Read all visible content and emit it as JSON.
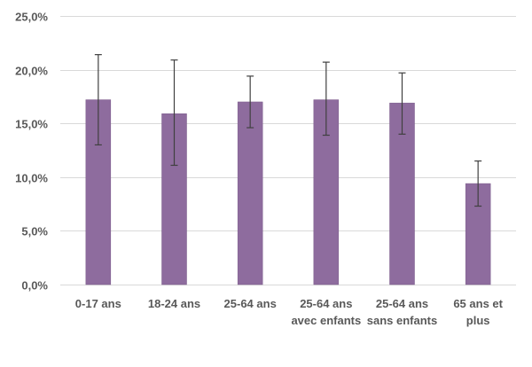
{
  "chart_data": {
    "type": "bar",
    "title": "",
    "xlabel": "",
    "ylabel": "",
    "categories": [
      [
        "0-17 ans"
      ],
      [
        "18-24 ans"
      ],
      [
        "25-64 ans"
      ],
      [
        "25-64 ans",
        "avec enfants"
      ],
      [
        "25-64 ans",
        "sans enfants"
      ],
      [
        "65 ans et",
        "plus"
      ]
    ],
    "values": [
      17.2,
      15.9,
      17.0,
      17.2,
      16.9,
      9.4
    ],
    "error_low": [
      13.0,
      11.1,
      14.6,
      13.9,
      14.0,
      7.3
    ],
    "error_high": [
      21.4,
      20.9,
      19.4,
      20.7,
      19.7,
      11.5
    ],
    "ylim": [
      0,
      25
    ],
    "yticks": [
      0,
      5,
      10,
      15,
      20,
      25
    ],
    "ytick_labels": [
      "0,0%",
      "5,0%",
      "10,0%",
      "15,0%",
      "20,0%",
      "25,0%"
    ],
    "grid": true,
    "legend": "none",
    "colors": {
      "bar": "#8E6C9E",
      "bar_edge": "#7A5A8A",
      "error_bar": "#404040",
      "grid": "#D9D9D9",
      "text": "#595959"
    }
  }
}
